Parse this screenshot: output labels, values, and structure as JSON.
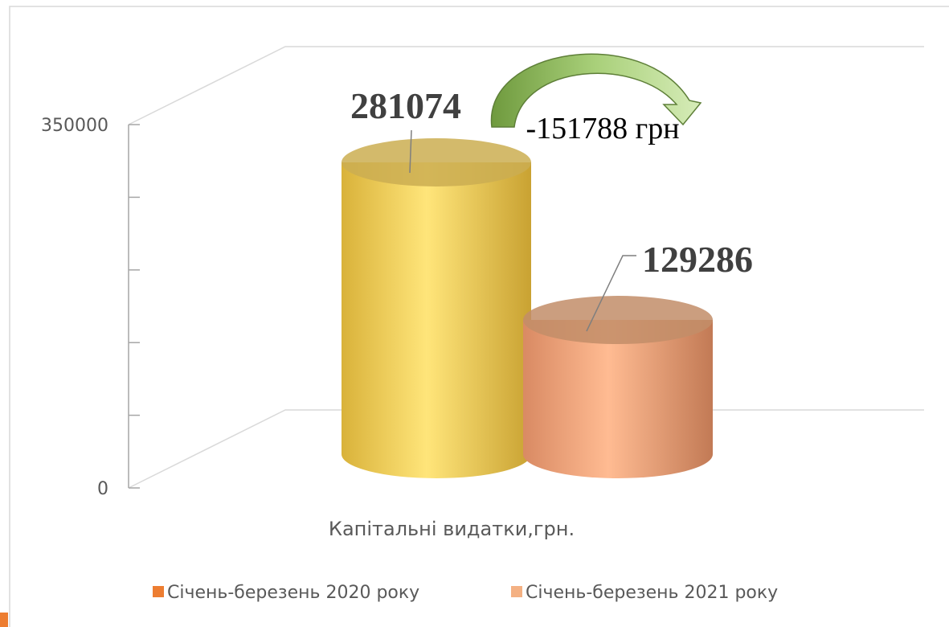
{
  "chart_data": {
    "type": "bar",
    "categories": [
      "Капітальні видатки,грн."
    ],
    "series": [
      {
        "name": "Січень-березень 2020 року",
        "color": "#ed7d31",
        "bar_color": "#ffd966",
        "values": [
          281074
        ]
      },
      {
        "name": "Січень-березень 2021 року",
        "color": "#f4b183",
        "bar_color": "#f4b183",
        "values": [
          129286
        ]
      }
    ],
    "ylim": [
      0,
      350000
    ],
    "yticks": [
      0,
      350000
    ],
    "yminorticks": [
      70000,
      140000,
      210000,
      280000
    ],
    "annotation": "-151788 грн",
    "legend": "bottom"
  }
}
